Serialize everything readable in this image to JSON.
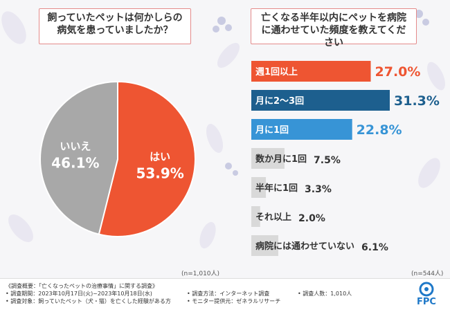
{
  "questions": {
    "pie_question": "飼っていたペットは何かしらの病気を患っていましたか？",
    "bar_question": "亡くなる半年以内にペットを病院に通わせていた頻度を教えてください"
  },
  "notes": {
    "pie_n": "(n=1,010人)",
    "bar_n": "(n=544人)"
  },
  "chart_data": [
    {
      "type": "pie",
      "slices": [
        {
          "label": "はい",
          "value": 53.9,
          "display": "53.9%",
          "color": "#ee5532"
        },
        {
          "label": "いいえ",
          "value": 46.1,
          "display": "46.1%",
          "color": "#a8a8a8"
        }
      ]
    },
    {
      "type": "bar",
      "orientation": "horizontal",
      "categories": [
        "週1回以上",
        "月に2～3回",
        "月に1回",
        "数か月に1回",
        "半年に1回",
        "それ以上",
        "病院には通わせていない"
      ],
      "values": [
        27.0,
        31.3,
        22.8,
        7.5,
        3.3,
        2.0,
        6.1
      ],
      "labels": [
        "27.0%",
        "31.3%",
        "22.8%",
        "7.5%",
        "3.3%",
        "2.0%",
        "6.1%"
      ],
      "colors": [
        "#ee5532",
        "#1d5f8e",
        "#3794d6",
        "#d9d9d9",
        "#d9d9d9",
        "#d9d9d9",
        "#d9d9d9"
      ],
      "xlim": [
        0,
        31.3
      ]
    }
  ],
  "footer": {
    "line1": "《調査概要：「亡くなったペットの治療事情」に関する調査》",
    "line2": "• 調査期間：2023年10月17日(火)~2023年10月18日(水)",
    "line3": "• 調査対象：飼っていたペット（犬・猫）を亡くした経験がある方",
    "method": "• 調査方法：インターネット調査",
    "monitor": "• モニター提供元：ゼネラルリサーチ",
    "count": "• 調査人数：1,010人"
  },
  "logo": {
    "text": "FPC"
  }
}
